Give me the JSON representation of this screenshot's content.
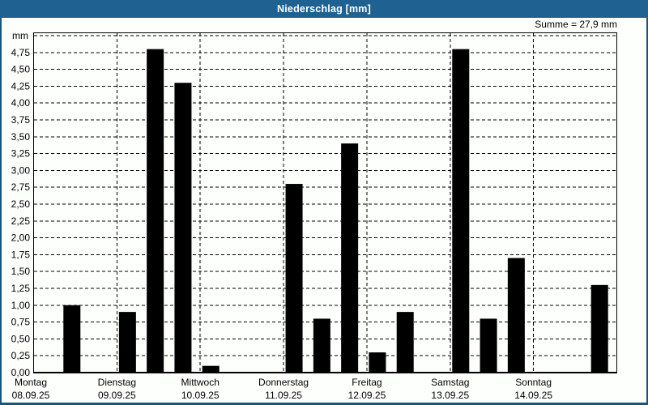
{
  "window": {
    "title": "Niederschlag [mm]"
  },
  "colors": {
    "title_bar": "#1f6291",
    "window_border": "#1a567a",
    "background": "#fdfffd",
    "bar": "#000000",
    "grid": "#000000",
    "text": "#000000"
  },
  "chart_data": {
    "type": "bar",
    "title": "Niederschlag [mm]",
    "sum_label": "Summe = 27,9 mm",
    "sum_value_mm": 27.9,
    "unit_label": "mm",
    "ylabel": "mm",
    "ylim": [
      0,
      5
    ],
    "y_tick_step": 0.25,
    "y_tick_labels": [
      "0,00",
      "0,25",
      "0,50",
      "0,75",
      "1,00",
      "1,25",
      "1,50",
      "1,75",
      "2,00",
      "2,25",
      "2,50",
      "2,75",
      "3,00",
      "3,25",
      "3,50",
      "3,75",
      "4,00",
      "4,25",
      "4,50",
      "4,75"
    ],
    "grid": "dashed horizontal every 0.25 mm, dashed vertical day separators",
    "legend_position": "none",
    "slots_per_day": 3,
    "days": [
      {
        "name": "Montag",
        "date": "08.09.25",
        "values": [
          null,
          1.0,
          null
        ]
      },
      {
        "name": "Dienstag",
        "date": "09.09.25",
        "values": [
          0.9,
          4.8,
          4.3
        ]
      },
      {
        "name": "Mittwoch",
        "date": "10.09.25",
        "values": [
          0.1,
          null,
          null
        ]
      },
      {
        "name": "Donnerstag",
        "date": "11.09.25",
        "values": [
          2.8,
          0.8,
          3.4
        ]
      },
      {
        "name": "Freitag",
        "date": "12.09.25",
        "values": [
          0.3,
          0.9,
          null
        ]
      },
      {
        "name": "Samstag",
        "date": "13.09.25",
        "values": [
          4.8,
          0.8,
          1.7
        ]
      },
      {
        "name": "Sonntag",
        "date": "14.09.25",
        "values": [
          null,
          null,
          1.3
        ]
      }
    ]
  }
}
